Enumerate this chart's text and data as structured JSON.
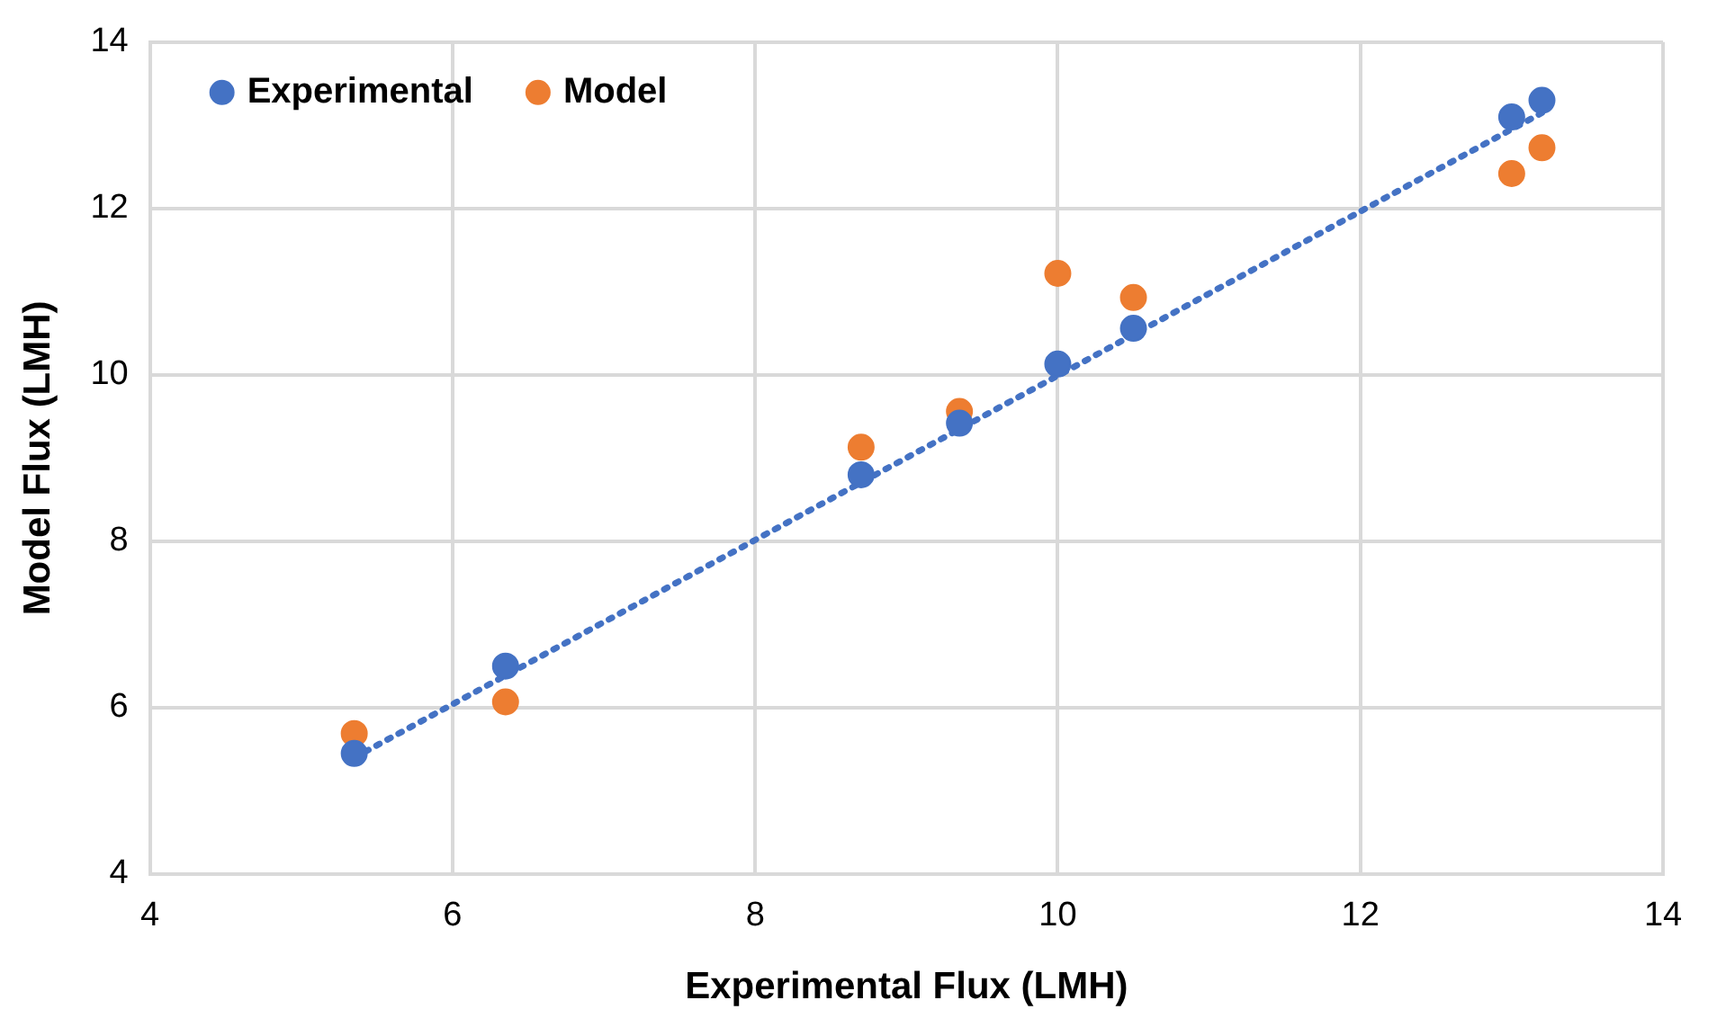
{
  "chart_data": {
    "type": "scatter",
    "xlabel": "Experimental Flux (LMH)",
    "ylabel": "Model Flux (LMH)",
    "x": [
      5.35,
      6.35,
      8.7,
      9.35,
      10.0,
      10.5,
      13.0,
      13.2
    ],
    "series": [
      {
        "name": "Experimental",
        "color": "#4472c4",
        "values": [
          5.45,
          6.5,
          8.8,
          9.42,
          10.13,
          10.56,
          13.1,
          13.3
        ]
      },
      {
        "name": "Model",
        "color": "#ed7d31",
        "values": [
          5.69,
          6.07,
          9.13,
          9.56,
          11.22,
          10.93,
          12.42,
          12.73
        ]
      },
      {
        "type": "line",
        "color": "#4472c4",
        "x": [
          5.35,
          13.2
        ],
        "values": [
          5.4,
          13.15
        ],
        "line_style": "dotted",
        "marker": "none"
      }
    ],
    "xlim": [
      4,
      14
    ],
    "xticks": [
      4,
      6,
      8,
      10,
      12,
      14
    ],
    "ylim": [
      4,
      14
    ],
    "yticks": [
      4,
      6,
      8,
      10,
      12,
      14
    ],
    "grid": true,
    "legend": "top left",
    "marker": "circle"
  }
}
